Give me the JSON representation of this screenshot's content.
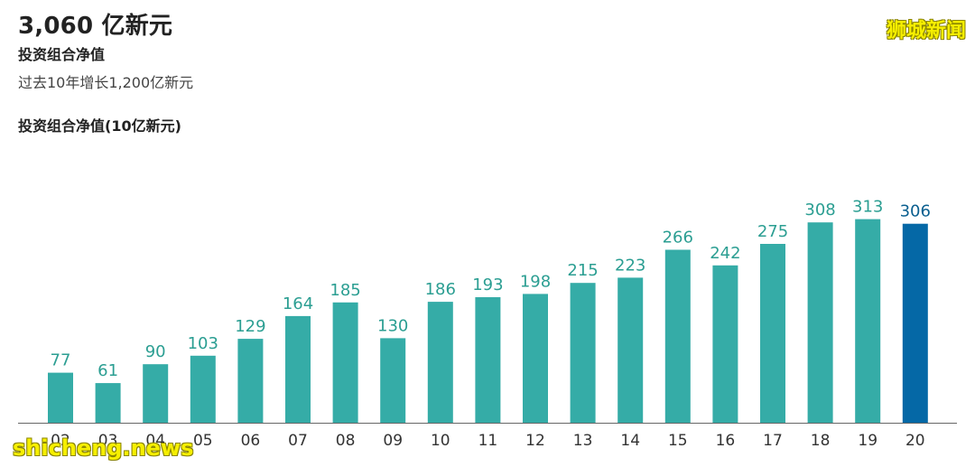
{
  "header": {
    "headline": "3,060 亿新元",
    "subhead": "投资组合净值",
    "subtext": "过去10年增长1,200亿新元"
  },
  "watermarks": {
    "top_right": "狮城新闻",
    "bottom_left": "shicheng.news"
  },
  "colors": {
    "bar": "#35aca7",
    "highlight_bar": "#0568a6",
    "label": "#2b9e92",
    "highlight_label": "#0a5f8f",
    "axis": "#666666"
  },
  "chart_data": {
    "type": "bar",
    "title": "投资组合净值(10亿新元)",
    "categories": [
      "02",
      "03",
      "04",
      "05",
      "06",
      "07",
      "08",
      "09",
      "10",
      "11",
      "12",
      "13",
      "14",
      "15",
      "16",
      "17",
      "18",
      "19",
      "20"
    ],
    "values": [
      77,
      61,
      90,
      103,
      129,
      164,
      185,
      130,
      186,
      193,
      198,
      215,
      223,
      266,
      242,
      275,
      308,
      313,
      306
    ],
    "highlight_index": 18,
    "ylim": [
      0,
      330
    ],
    "grid": false,
    "legend": "none"
  }
}
